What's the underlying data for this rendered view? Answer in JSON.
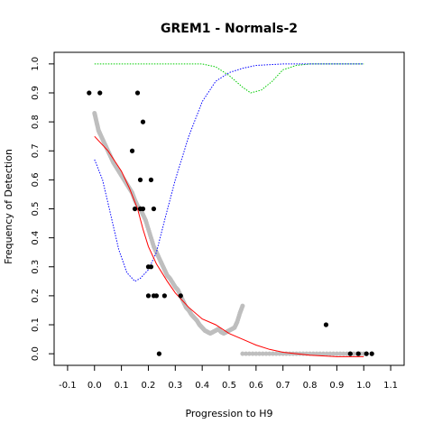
{
  "chart_data": {
    "type": "scatter",
    "title": "GREM1 - Normals-2",
    "xlabel": "Progression to H9",
    "ylabel": "Frequency of Detection",
    "xlim": [
      -0.15,
      1.15
    ],
    "ylim": [
      -0.04,
      1.04
    ],
    "x_ticks": [
      "-0.1",
      "0.0",
      "0.1",
      "0.2",
      "0.3",
      "0.4",
      "0.5",
      "0.6",
      "0.7",
      "0.8",
      "0.9",
      "1.0",
      "1.1"
    ],
    "x_tick_values": [
      -0.1,
      0.0,
      0.1,
      0.2,
      0.3,
      0.4,
      0.5,
      0.6,
      0.7,
      0.8,
      0.9,
      1.0,
      1.1
    ],
    "y_ticks": [
      "0.0",
      "0.1",
      "0.2",
      "0.3",
      "0.4",
      "0.5",
      "0.6",
      "0.7",
      "0.8",
      "0.9",
      "1.0"
    ],
    "y_tick_values": [
      0.0,
      0.1,
      0.2,
      0.3,
      0.4,
      0.5,
      0.6,
      0.7,
      0.8,
      0.9,
      1.0
    ],
    "grid": false,
    "colors": {
      "observed": "#000000",
      "smoothed": "#bebebe",
      "fit": "#ff0000",
      "upper_band": "#00cc00",
      "lower_band": "#0000ff"
    },
    "series": [
      {
        "kind": "points",
        "color_key": "observed",
        "points": [
          [
            -0.02,
            0.9
          ],
          [
            0.02,
            0.9
          ],
          [
            0.16,
            0.9
          ],
          [
            0.18,
            0.8
          ],
          [
            0.14,
            0.7
          ],
          [
            0.17,
            0.6
          ],
          [
            0.21,
            0.6
          ],
          [
            0.15,
            0.5
          ],
          [
            0.17,
            0.5
          ],
          [
            0.18,
            0.5
          ],
          [
            0.22,
            0.5
          ],
          [
            0.2,
            0.3
          ],
          [
            0.21,
            0.3
          ],
          [
            0.2,
            0.2
          ],
          [
            0.22,
            0.2
          ],
          [
            0.23,
            0.2
          ],
          [
            0.26,
            0.2
          ],
          [
            0.32,
            0.2
          ],
          [
            0.24,
            0.0
          ],
          [
            0.86,
            0.1
          ],
          [
            0.95,
            0.0
          ],
          [
            0.98,
            0.0
          ],
          [
            1.01,
            0.0
          ],
          [
            1.03,
            0.0
          ]
        ]
      },
      {
        "kind": "dense-points",
        "color_key": "smoothed",
        "points": [
          [
            0.0,
            0.83
          ],
          [
            0.005,
            0.81
          ],
          [
            0.01,
            0.79
          ],
          [
            0.015,
            0.77
          ],
          [
            0.02,
            0.76
          ],
          [
            0.03,
            0.74
          ],
          [
            0.04,
            0.72
          ],
          [
            0.05,
            0.7
          ],
          [
            0.06,
            0.68
          ],
          [
            0.07,
            0.66
          ],
          [
            0.08,
            0.645
          ],
          [
            0.09,
            0.63
          ],
          [
            0.1,
            0.615
          ],
          [
            0.11,
            0.6
          ],
          [
            0.12,
            0.585
          ],
          [
            0.13,
            0.57
          ],
          [
            0.14,
            0.555
          ],
          [
            0.15,
            0.53
          ],
          [
            0.16,
            0.51
          ],
          [
            0.17,
            0.5
          ],
          [
            0.18,
            0.48
          ],
          [
            0.19,
            0.46
          ],
          [
            0.2,
            0.43
          ],
          [
            0.21,
            0.4
          ],
          [
            0.22,
            0.37
          ],
          [
            0.23,
            0.35
          ],
          [
            0.24,
            0.33
          ],
          [
            0.25,
            0.31
          ],
          [
            0.26,
            0.29
          ],
          [
            0.27,
            0.27
          ],
          [
            0.28,
            0.26
          ],
          [
            0.29,
            0.245
          ],
          [
            0.3,
            0.23
          ],
          [
            0.31,
            0.22
          ],
          [
            0.32,
            0.2
          ],
          [
            0.33,
            0.18
          ],
          [
            0.34,
            0.16
          ],
          [
            0.35,
            0.15
          ],
          [
            0.36,
            0.135
          ],
          [
            0.37,
            0.125
          ],
          [
            0.38,
            0.115
          ],
          [
            0.39,
            0.1
          ],
          [
            0.4,
            0.09
          ],
          [
            0.41,
            0.08
          ],
          [
            0.42,
            0.075
          ],
          [
            0.43,
            0.07
          ],
          [
            0.44,
            0.075
          ],
          [
            0.45,
            0.08
          ],
          [
            0.46,
            0.085
          ],
          [
            0.47,
            0.075
          ],
          [
            0.48,
            0.07
          ],
          [
            0.49,
            0.075
          ],
          [
            0.5,
            0.08
          ],
          [
            0.51,
            0.085
          ],
          [
            0.52,
            0.09
          ],
          [
            0.53,
            0.11
          ],
          [
            0.54,
            0.14
          ],
          [
            0.55,
            0.165
          ],
          [
            0.55,
            0.0
          ],
          [
            0.6,
            0.0
          ],
          [
            0.65,
            0.0
          ],
          [
            0.7,
            0.0
          ],
          [
            0.75,
            0.0
          ],
          [
            0.8,
            0.0
          ],
          [
            0.85,
            0.0
          ],
          [
            0.9,
            0.0
          ],
          [
            0.95,
            0.0
          ],
          [
            1.0,
            0.0
          ]
        ]
      },
      {
        "kind": "line",
        "color_key": "fit",
        "points": [
          [
            0.0,
            0.75
          ],
          [
            0.05,
            0.7
          ],
          [
            0.1,
            0.63
          ],
          [
            0.13,
            0.57
          ],
          [
            0.16,
            0.5
          ],
          [
            0.18,
            0.43
          ],
          [
            0.2,
            0.37
          ],
          [
            0.23,
            0.31
          ],
          [
            0.27,
            0.25
          ],
          [
            0.3,
            0.21
          ],
          [
            0.35,
            0.16
          ],
          [
            0.4,
            0.12
          ],
          [
            0.45,
            0.1
          ],
          [
            0.5,
            0.07
          ],
          [
            0.55,
            0.05
          ],
          [
            0.6,
            0.03
          ],
          [
            0.65,
            0.015
          ],
          [
            0.7,
            0.005
          ],
          [
            0.8,
            -0.005
          ],
          [
            0.9,
            -0.01
          ],
          [
            1.0,
            -0.01
          ]
        ]
      },
      {
        "kind": "dotted",
        "color_key": "upper_band",
        "points": [
          [
            0.0,
            1.0
          ],
          [
            0.1,
            1.0
          ],
          [
            0.2,
            1.0
          ],
          [
            0.3,
            1.0
          ],
          [
            0.4,
            1.0
          ],
          [
            0.45,
            0.99
          ],
          [
            0.5,
            0.96
          ],
          [
            0.55,
            0.92
          ],
          [
            0.58,
            0.9
          ],
          [
            0.62,
            0.91
          ],
          [
            0.66,
            0.94
          ],
          [
            0.7,
            0.98
          ],
          [
            0.75,
            0.995
          ],
          [
            0.8,
            1.0
          ],
          [
            0.9,
            1.0
          ],
          [
            1.0,
            1.0
          ]
        ]
      },
      {
        "kind": "dotted",
        "color_key": "lower_band",
        "points": [
          [
            0.0,
            0.67
          ],
          [
            0.03,
            0.6
          ],
          [
            0.06,
            0.48
          ],
          [
            0.09,
            0.36
          ],
          [
            0.12,
            0.28
          ],
          [
            0.15,
            0.25
          ],
          [
            0.17,
            0.26
          ],
          [
            0.2,
            0.29
          ],
          [
            0.23,
            0.35
          ],
          [
            0.26,
            0.46
          ],
          [
            0.3,
            0.6
          ],
          [
            0.35,
            0.75
          ],
          [
            0.4,
            0.87
          ],
          [
            0.45,
            0.94
          ],
          [
            0.5,
            0.97
          ],
          [
            0.55,
            0.985
          ],
          [
            0.6,
            0.995
          ],
          [
            0.7,
            1.0
          ],
          [
            0.8,
            1.0
          ],
          [
            0.9,
            1.0
          ],
          [
            1.0,
            1.0
          ]
        ]
      }
    ]
  }
}
